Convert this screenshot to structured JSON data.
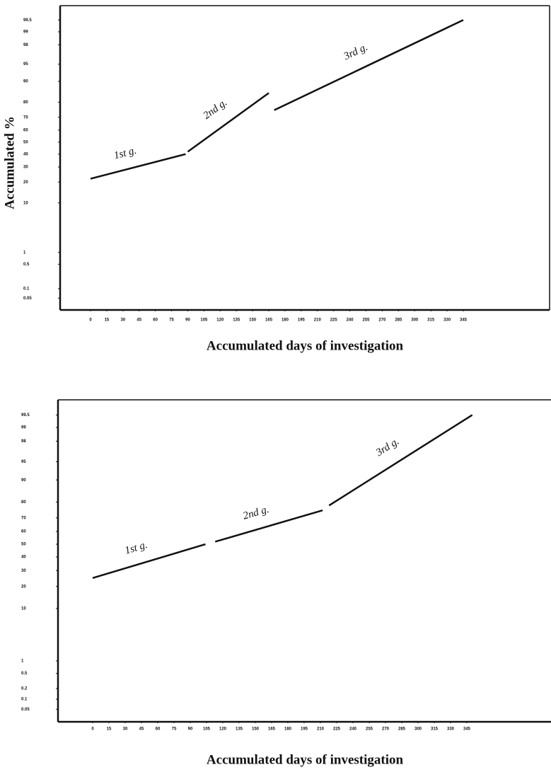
{
  "chart_data": [
    {
      "type": "line",
      "scale": "probability",
      "y_label": "Accumulated %",
      "x_label": "Accumulated days of investigation",
      "xlim": [
        0,
        345
      ],
      "xticks": [
        0,
        15,
        30,
        45,
        60,
        75,
        90,
        105,
        120,
        135,
        150,
        165,
        180,
        195,
        210,
        225,
        240,
        255,
        270,
        285,
        300,
        315,
        330,
        345
      ],
      "ylim": [
        0.02,
        99.8
      ],
      "yticks": [
        0.05,
        0.1,
        0.5,
        1,
        10,
        20,
        30,
        40,
        50,
        60,
        70,
        80,
        90,
        95,
        98,
        99,
        99.5
      ],
      "color": "#111111",
      "segments": [
        {
          "label": "1st g.",
          "x": [
            0,
            88
          ],
          "values": [
            22,
            40
          ]
        },
        {
          "label": "2nd g.",
          "x": [
            90,
            165
          ],
          "values": [
            42,
            85
          ]
        },
        {
          "label": "3rd g.",
          "x": [
            170,
            345
          ],
          "values": [
            75,
            99.5
          ]
        }
      ]
    },
    {
      "type": "line",
      "scale": "probability",
      "x_label": "Accumulated days of investigation",
      "xlim": [
        0,
        345
      ],
      "xticks": [
        0,
        15,
        30,
        45,
        60,
        75,
        90,
        105,
        120,
        135,
        150,
        165,
        180,
        195,
        210,
        225,
        240,
        255,
        270,
        285,
        300,
        315,
        330,
        345
      ],
      "ylim": [
        0.02,
        99.8
      ],
      "yticks": [
        0.05,
        0.1,
        0.2,
        0.5,
        1,
        10,
        20,
        30,
        40,
        50,
        60,
        70,
        80,
        90,
        95,
        98,
        99,
        99.5
      ],
      "color": "#111111",
      "segments": [
        {
          "label": "1st g.",
          "x": [
            0,
            104
          ],
          "values": [
            25,
            50
          ]
        },
        {
          "label": "2nd g.",
          "x": [
            113,
            212
          ],
          "values": [
            52,
            75
          ]
        },
        {
          "label": "3rd g.",
          "x": [
            218,
            350
          ],
          "values": [
            78,
            99.5
          ]
        }
      ]
    }
  ]
}
